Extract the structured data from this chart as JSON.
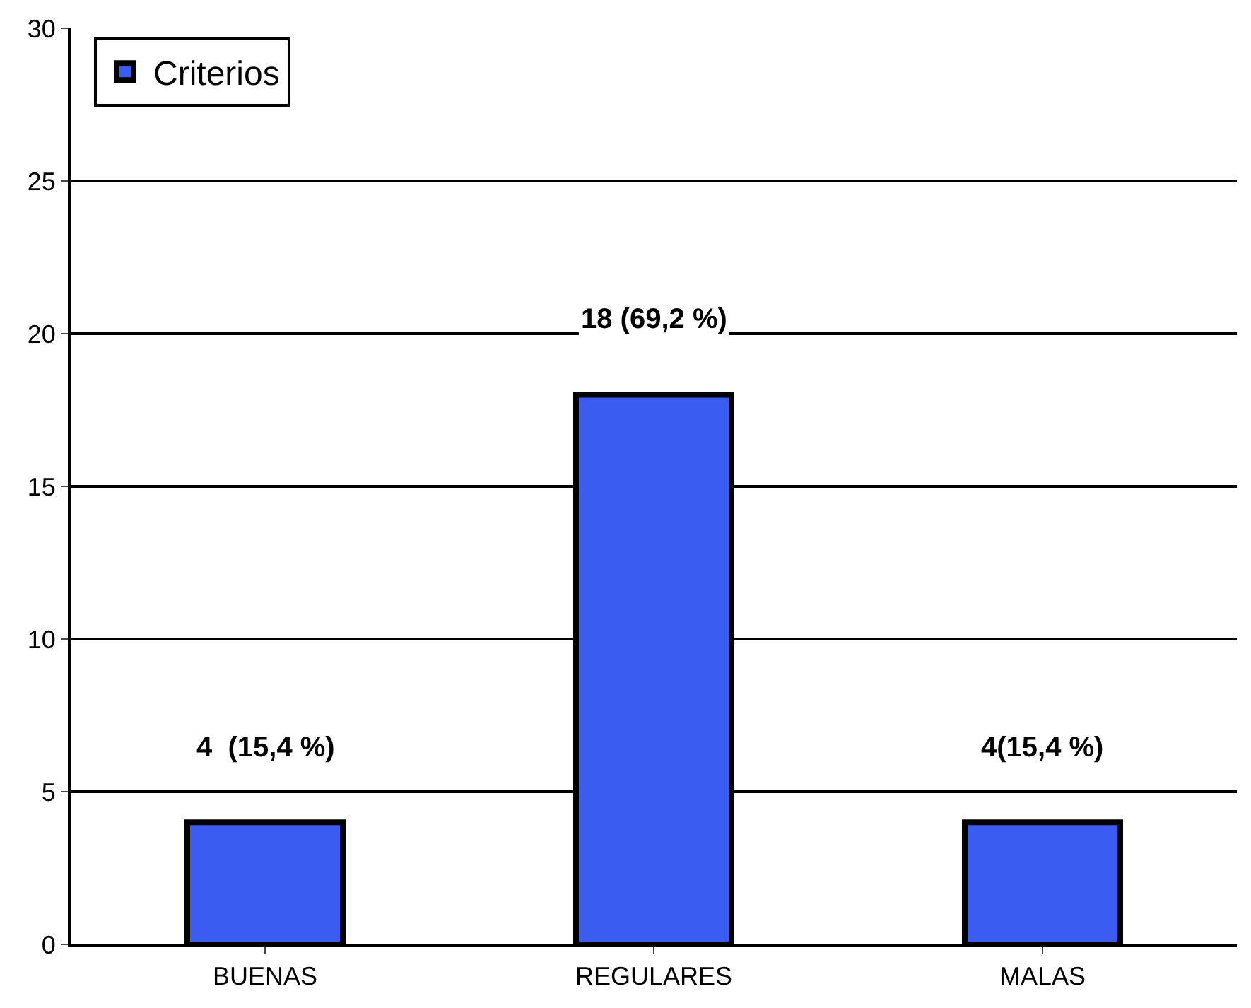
{
  "chart_data": {
    "type": "bar",
    "categories": [
      "BUENAS",
      "REGULARES",
      "MALAS"
    ],
    "series": [
      {
        "name": "Criterios",
        "color": "#3a5cf0",
        "values": [
          4,
          18,
          4
        ],
        "value_labels": [
          "4  (15,4 %)",
          "18 (69,2 %)",
          "4(15,4 %)"
        ]
      }
    ],
    "ylim": [
      0,
      30
    ],
    "yticks": [
      0,
      5,
      10,
      15,
      20,
      25,
      30
    ],
    "grid": "y",
    "legend": "top left"
  }
}
